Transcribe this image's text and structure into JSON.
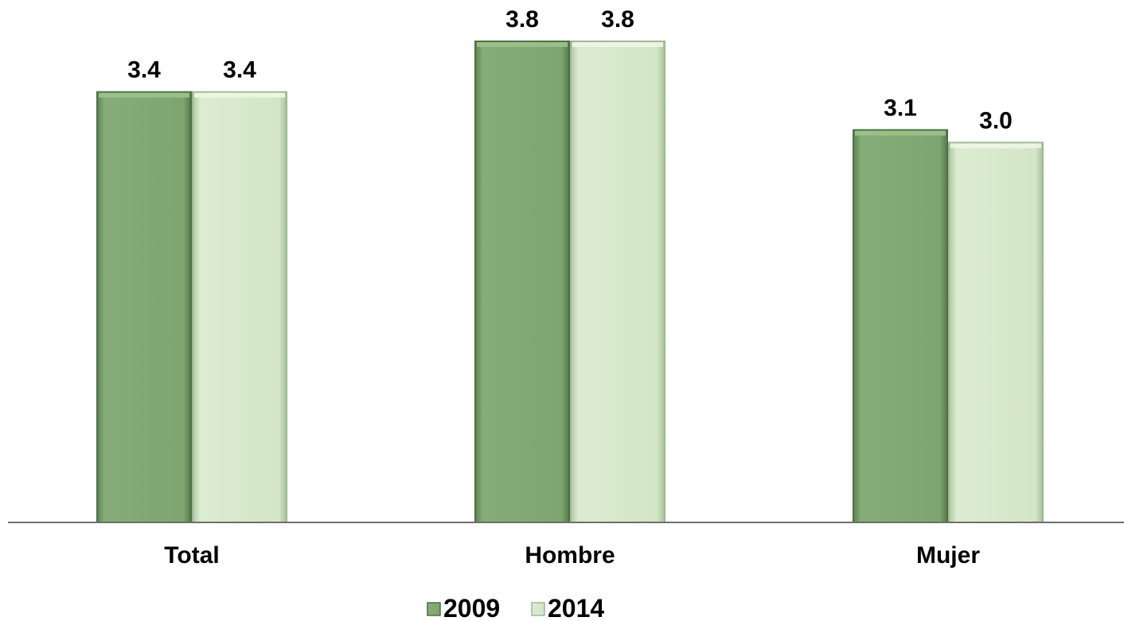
{
  "chart_data": {
    "type": "bar",
    "categories": [
      "Total",
      "Hombre",
      "Mujer"
    ],
    "series": [
      {
        "name": "2009",
        "values": [
          3.4,
          3.8,
          3.1
        ],
        "labels": [
          "3.4",
          "3.8",
          "3.1"
        ],
        "color": "#7fa672"
      },
      {
        "name": "2014",
        "values": [
          3.4,
          3.8,
          3.0
        ],
        "labels": [
          "3.4",
          "3.8",
          "3.0"
        ],
        "color": "#d5e8c8"
      }
    ],
    "ylim": [
      0,
      4
    ],
    "grid": false,
    "legend_position": "bottom",
    "axis_color": "#6e6e6e"
  }
}
